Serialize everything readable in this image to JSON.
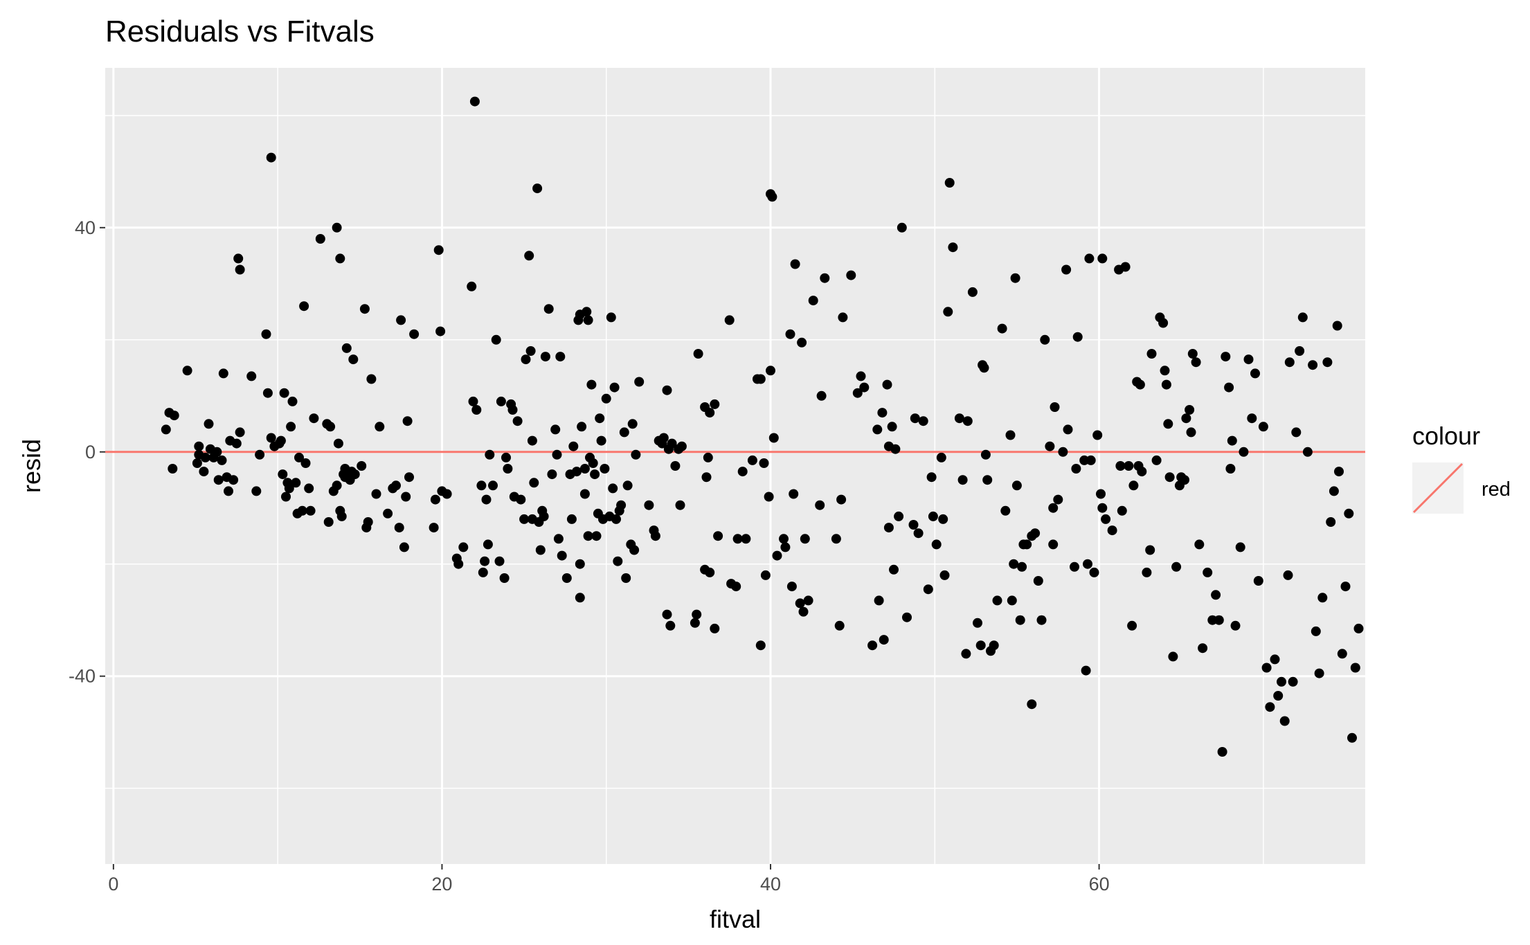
{
  "chart_data": {
    "type": "scatter",
    "title": "Residuals vs Fitvals",
    "xlabel": "fitval",
    "ylabel": "resid",
    "xlim": [
      -0.5,
      76.2
    ],
    "ylim": [
      -73.5,
      68.5
    ],
    "x_ticks": [
      0,
      20,
      40,
      60
    ],
    "y_ticks": [
      -40,
      0,
      40
    ],
    "x_tick_labels": [
      "0",
      "20",
      "40",
      "60"
    ],
    "y_tick_labels": [
      "-40",
      "0",
      "40"
    ],
    "x_minor_ticks": [
      10,
      30,
      50,
      70
    ],
    "y_minor_ticks": [
      -60,
      -20,
      20,
      60
    ],
    "grid": true,
    "point_color": "#000000",
    "reference_line": {
      "y": 0,
      "color": "#F8766D"
    },
    "legend": {
      "title": "colour",
      "label": "red",
      "placement": "right",
      "color": "#F8766D"
    },
    "points": [
      [
        3.2,
        4
      ],
      [
        3.4,
        7
      ],
      [
        3.7,
        6.5
      ],
      [
        3.6,
        -3
      ],
      [
        4.5,
        14.5
      ],
      [
        5.1,
        -2
      ],
      [
        5.2,
        1
      ],
      [
        5.2,
        -0.5
      ],
      [
        5.5,
        -3.5
      ],
      [
        5.6,
        -1
      ],
      [
        5.8,
        5
      ],
      [
        5.9,
        0.5
      ],
      [
        6.1,
        -1
      ],
      [
        6.3,
        0
      ],
      [
        6.4,
        -5
      ],
      [
        6.6,
        -1.5
      ],
      [
        6.7,
        14
      ],
      [
        6.9,
        -4.5
      ],
      [
        7.0,
        -7
      ],
      [
        7.1,
        2
      ],
      [
        7.3,
        -5
      ],
      [
        7.5,
        1.5
      ],
      [
        7.6,
        34.5
      ],
      [
        7.7,
        32.5
      ],
      [
        7.7,
        3.5
      ],
      [
        8.4,
        13.5
      ],
      [
        8.7,
        -7
      ],
      [
        8.9,
        -0.5
      ],
      [
        9.3,
        21
      ],
      [
        9.4,
        10.5
      ],
      [
        9.6,
        52.5
      ],
      [
        9.6,
        2.5
      ],
      [
        9.8,
        1
      ],
      [
        10.1,
        1.5
      ],
      [
        10.2,
        2
      ],
      [
        10.3,
        -4
      ],
      [
        10.4,
        10.5
      ],
      [
        10.5,
        -8
      ],
      [
        10.6,
        -5.5
      ],
      [
        10.7,
        -6.5
      ],
      [
        10.8,
        4.5
      ],
      [
        10.9,
        9
      ],
      [
        11.1,
        -5.5
      ],
      [
        11.2,
        -11
      ],
      [
        11.3,
        -1
      ],
      [
        11.5,
        -10.5
      ],
      [
        11.6,
        26
      ],
      [
        11.7,
        -2
      ],
      [
        11.9,
        -6.5
      ],
      [
        12.0,
        -10.5
      ],
      [
        12.2,
        6
      ],
      [
        12.6,
        38
      ],
      [
        13.0,
        5
      ],
      [
        13.1,
        -12.5
      ],
      [
        13.2,
        4.5
      ],
      [
        13.4,
        -7
      ],
      [
        13.6,
        -6
      ],
      [
        13.6,
        40
      ],
      [
        13.7,
        1.5
      ],
      [
        13.8,
        34.5
      ],
      [
        13.8,
        -10.5
      ],
      [
        13.9,
        -11.5
      ],
      [
        14.0,
        -4
      ],
      [
        14.1,
        -4.5
      ],
      [
        14.1,
        -3
      ],
      [
        14.2,
        18.5
      ],
      [
        14.4,
        -5
      ],
      [
        14.5,
        -3.5
      ],
      [
        14.6,
        16.5
      ],
      [
        14.7,
        -4
      ],
      [
        15.1,
        -2.5
      ],
      [
        15.3,
        25.5
      ],
      [
        15.4,
        -13.5
      ],
      [
        15.5,
        -12.5
      ],
      [
        15.7,
        13
      ],
      [
        16.0,
        -7.5
      ],
      [
        16.2,
        4.5
      ],
      [
        16.7,
        -11
      ],
      [
        17.0,
        -6.5
      ],
      [
        17.2,
        -6
      ],
      [
        17.4,
        -13.5
      ],
      [
        17.5,
        23.5
      ],
      [
        17.7,
        -17
      ],
      [
        17.8,
        -8
      ],
      [
        17.9,
        5.5
      ],
      [
        18.0,
        -4.5
      ],
      [
        18.3,
        21
      ],
      [
        19.5,
        -13.5
      ],
      [
        19.6,
        -8.5
      ],
      [
        19.8,
        36
      ],
      [
        19.9,
        21.5
      ],
      [
        20.0,
        -7
      ],
      [
        20.3,
        -7.5
      ],
      [
        20.9,
        -19
      ],
      [
        21.0,
        -20
      ],
      [
        21.3,
        -17
      ],
      [
        21.8,
        29.5
      ],
      [
        21.9,
        9
      ],
      [
        22.0,
        62.5
      ],
      [
        22.1,
        7.5
      ],
      [
        22.4,
        -6
      ],
      [
        22.5,
        -21.5
      ],
      [
        22.6,
        -19.5
      ],
      [
        22.7,
        -8.5
      ],
      [
        22.8,
        -16.5
      ],
      [
        22.9,
        -0.5
      ],
      [
        23.1,
        -6
      ],
      [
        23.3,
        20
      ],
      [
        23.5,
        -19.5
      ],
      [
        23.6,
        9
      ],
      [
        23.8,
        -22.5
      ],
      [
        23.9,
        -1
      ],
      [
        24.0,
        -3
      ],
      [
        24.2,
        8.5
      ],
      [
        24.3,
        7.5
      ],
      [
        24.4,
        -8
      ],
      [
        24.6,
        5.5
      ],
      [
        24.8,
        -8.5
      ],
      [
        25.0,
        -12
      ],
      [
        25.1,
        16.5
      ],
      [
        25.3,
        35
      ],
      [
        25.4,
        18
      ],
      [
        25.5,
        2
      ],
      [
        25.5,
        -12
      ],
      [
        25.6,
        -5.5
      ],
      [
        25.8,
        47
      ],
      [
        25.9,
        -12.5
      ],
      [
        26.0,
        -17.5
      ],
      [
        26.1,
        -10.5
      ],
      [
        26.2,
        -11.5
      ],
      [
        26.3,
        17
      ],
      [
        26.5,
        25.5
      ],
      [
        26.7,
        -4
      ],
      [
        26.9,
        4
      ],
      [
        27.0,
        -0.5
      ],
      [
        27.1,
        -15.5
      ],
      [
        27.2,
        17
      ],
      [
        27.3,
        -18.5
      ],
      [
        27.6,
        -22.5
      ],
      [
        27.8,
        -4
      ],
      [
        27.9,
        -12
      ],
      [
        28.0,
        1
      ],
      [
        28.2,
        -3.5
      ],
      [
        28.3,
        23.5
      ],
      [
        28.4,
        -20
      ],
      [
        28.4,
        24.5
      ],
      [
        28.4,
        -26
      ],
      [
        28.5,
        4.5
      ],
      [
        28.7,
        -3
      ],
      [
        28.7,
        -7.5
      ],
      [
        28.8,
        25
      ],
      [
        28.9,
        -15
      ],
      [
        28.9,
        23.5
      ],
      [
        29.0,
        -1
      ],
      [
        29.1,
        12
      ],
      [
        29.2,
        -2
      ],
      [
        29.3,
        -4
      ],
      [
        29.4,
        -15
      ],
      [
        29.5,
        -11
      ],
      [
        29.6,
        6
      ],
      [
        29.7,
        2
      ],
      [
        29.8,
        -12
      ],
      [
        29.9,
        -3
      ],
      [
        30.0,
        9.5
      ],
      [
        30.2,
        -11.5
      ],
      [
        30.3,
        24
      ],
      [
        30.4,
        -6.5
      ],
      [
        30.5,
        11.5
      ],
      [
        30.6,
        -12
      ],
      [
        30.7,
        -19.5
      ],
      [
        30.8,
        -10.5
      ],
      [
        30.9,
        -9.5
      ],
      [
        31.1,
        3.5
      ],
      [
        31.2,
        -22.5
      ],
      [
        31.3,
        -6
      ],
      [
        31.5,
        -16.5
      ],
      [
        31.6,
        5
      ],
      [
        31.7,
        -17.5
      ],
      [
        31.8,
        -0.5
      ],
      [
        32.0,
        12.5
      ],
      [
        32.6,
        -9.5
      ],
      [
        32.9,
        -14
      ],
      [
        33.0,
        -15
      ],
      [
        33.2,
        2
      ],
      [
        33.4,
        1.5
      ],
      [
        33.5,
        2.5
      ],
      [
        33.7,
        -29
      ],
      [
        33.7,
        11
      ],
      [
        33.8,
        0.5
      ],
      [
        33.9,
        -31
      ],
      [
        34.0,
        1.5
      ],
      [
        34.2,
        -2.5
      ],
      [
        34.4,
        0.5
      ],
      [
        34.5,
        -9.5
      ],
      [
        34.6,
        1
      ],
      [
        35.4,
        -30.5
      ],
      [
        35.5,
        -29
      ],
      [
        35.6,
        17.5
      ],
      [
        36.0,
        -21
      ],
      [
        36.0,
        8
      ],
      [
        36.1,
        -4.5
      ],
      [
        36.2,
        -1
      ],
      [
        36.3,
        7
      ],
      [
        36.3,
        -21.5
      ],
      [
        36.6,
        8.5
      ],
      [
        36.6,
        -31.5
      ],
      [
        36.8,
        -15
      ],
      [
        37.5,
        23.5
      ],
      [
        37.6,
        -23.5
      ],
      [
        37.9,
        -24
      ],
      [
        38.0,
        -15.5
      ],
      [
        38.3,
        -3.5
      ],
      [
        38.5,
        -15.5
      ],
      [
        38.9,
        -1.5
      ],
      [
        39.2,
        13
      ],
      [
        39.4,
        -34.5
      ],
      [
        39.4,
        13
      ],
      [
        39.6,
        -2
      ],
      [
        39.7,
        -22
      ],
      [
        39.9,
        -8
      ],
      [
        40.0,
        46
      ],
      [
        40.0,
        14.5
      ],
      [
        40.1,
        45.5
      ],
      [
        40.2,
        2.5
      ],
      [
        40.4,
        -18.5
      ],
      [
        40.8,
        -15.5
      ],
      [
        40.9,
        -17
      ],
      [
        41.2,
        21
      ],
      [
        41.3,
        -24
      ],
      [
        41.4,
        -7.5
      ],
      [
        41.5,
        33.5
      ],
      [
        41.8,
        -27
      ],
      [
        41.9,
        19.5
      ],
      [
        42.0,
        -28.5
      ],
      [
        42.1,
        -15.5
      ],
      [
        42.3,
        -26.5
      ],
      [
        42.6,
        27
      ],
      [
        43.0,
        -9.5
      ],
      [
        43.1,
        10
      ],
      [
        43.3,
        31
      ],
      [
        44.0,
        -15.5
      ],
      [
        44.2,
        -31
      ],
      [
        44.3,
        -8.5
      ],
      [
        44.4,
        24
      ],
      [
        44.9,
        31.5
      ],
      [
        45.3,
        10.5
      ],
      [
        45.5,
        13.5
      ],
      [
        45.7,
        11.5
      ],
      [
        46.2,
        -34.5
      ],
      [
        46.5,
        4
      ],
      [
        46.6,
        -26.5
      ],
      [
        46.8,
        7
      ],
      [
        46.9,
        -33.5
      ],
      [
        47.1,
        12
      ],
      [
        47.2,
        -13.5
      ],
      [
        47.2,
        1
      ],
      [
        47.4,
        4.5
      ],
      [
        47.5,
        -21
      ],
      [
        47.6,
        0.5
      ],
      [
        47.8,
        -11.5
      ],
      [
        48.0,
        40
      ],
      [
        48.3,
        -29.5
      ],
      [
        48.7,
        -13
      ],
      [
        48.8,
        6
      ],
      [
        49.0,
        -14.5
      ],
      [
        49.3,
        5.5
      ],
      [
        49.6,
        -24.5
      ],
      [
        49.8,
        -4.5
      ],
      [
        49.9,
        -11.5
      ],
      [
        50.1,
        -16.5
      ],
      [
        50.4,
        -1
      ],
      [
        50.5,
        -12
      ],
      [
        50.6,
        -22
      ],
      [
        50.8,
        25
      ],
      [
        50.9,
        48
      ],
      [
        51.1,
        36.5
      ],
      [
        51.5,
        6
      ],
      [
        51.7,
        -5
      ],
      [
        51.9,
        -36
      ],
      [
        52.0,
        5.5
      ],
      [
        52.3,
        28.5
      ],
      [
        52.6,
        -30.5
      ],
      [
        52.8,
        -34.5
      ],
      [
        52.9,
        15.5
      ],
      [
        53.0,
        15
      ],
      [
        53.1,
        -0.5
      ],
      [
        53.2,
        -5
      ],
      [
        53.4,
        -35.5
      ],
      [
        53.6,
        -34.5
      ],
      [
        53.8,
        -26.5
      ],
      [
        54.1,
        22
      ],
      [
        54.3,
        -10.5
      ],
      [
        54.6,
        3
      ],
      [
        54.7,
        -26.5
      ],
      [
        54.8,
        -20
      ],
      [
        54.9,
        31
      ],
      [
        55.0,
        -6
      ],
      [
        55.2,
        -30
      ],
      [
        55.3,
        -20.5
      ],
      [
        55.4,
        -16.5
      ],
      [
        55.6,
        -16.5
      ],
      [
        55.9,
        -45
      ],
      [
        55.9,
        -15
      ],
      [
        56.1,
        -14.5
      ],
      [
        56.3,
        -23
      ],
      [
        56.5,
        -30
      ],
      [
        56.7,
        20
      ],
      [
        57.0,
        1
      ],
      [
        57.2,
        -16.5
      ],
      [
        57.2,
        -10
      ],
      [
        57.3,
        8
      ],
      [
        57.5,
        -8.5
      ],
      [
        57.8,
        0
      ],
      [
        58.0,
        32.5
      ],
      [
        58.1,
        4
      ],
      [
        58.5,
        -20.5
      ],
      [
        58.6,
        -3
      ],
      [
        58.7,
        20.5
      ],
      [
        59.1,
        -1.5
      ],
      [
        59.2,
        -39
      ],
      [
        59.3,
        -20
      ],
      [
        59.4,
        34.5
      ],
      [
        59.5,
        -1.5
      ],
      [
        59.7,
        -21.5
      ],
      [
        59.9,
        3
      ],
      [
        60.1,
        -7.5
      ],
      [
        60.2,
        -10
      ],
      [
        60.2,
        34.5
      ],
      [
        60.4,
        -12
      ],
      [
        60.8,
        -14
      ],
      [
        61.2,
        32.5
      ],
      [
        61.3,
        -2.5
      ],
      [
        61.4,
        -10.5
      ],
      [
        61.6,
        33
      ],
      [
        61.8,
        -2.5
      ],
      [
        62.0,
        -31
      ],
      [
        62.1,
        -6
      ],
      [
        62.3,
        12.5
      ],
      [
        62.4,
        -2.5
      ],
      [
        62.5,
        12
      ],
      [
        62.6,
        -3.5
      ],
      [
        62.9,
        -21.5
      ],
      [
        63.1,
        -17.5
      ],
      [
        63.2,
        17.5
      ],
      [
        63.5,
        -1.5
      ],
      [
        63.7,
        24
      ],
      [
        63.9,
        23
      ],
      [
        64.0,
        14.5
      ],
      [
        64.1,
        12
      ],
      [
        64.2,
        5
      ],
      [
        64.3,
        -4.5
      ],
      [
        64.5,
        -36.5
      ],
      [
        64.7,
        -20.5
      ],
      [
        64.9,
        -6
      ],
      [
        65.0,
        -4.5
      ],
      [
        65.2,
        -5
      ],
      [
        65.3,
        6
      ],
      [
        65.5,
        7.5
      ],
      [
        65.6,
        3.5
      ],
      [
        65.7,
        17.5
      ],
      [
        65.9,
        16
      ],
      [
        66.1,
        -16.5
      ],
      [
        66.3,
        -35
      ],
      [
        66.6,
        -21.5
      ],
      [
        66.9,
        -30
      ],
      [
        67.1,
        -25.5
      ],
      [
        67.3,
        -30
      ],
      [
        67.5,
        -53.5
      ],
      [
        67.7,
        17
      ],
      [
        67.9,
        11.5
      ],
      [
        68.0,
        -3
      ],
      [
        68.1,
        2
      ],
      [
        68.3,
        -31
      ],
      [
        68.6,
        -17
      ],
      [
        68.8,
        0
      ],
      [
        69.1,
        16.5
      ],
      [
        69.3,
        6
      ],
      [
        69.5,
        14
      ],
      [
        69.7,
        -23
      ],
      [
        70.0,
        4.5
      ],
      [
        70.2,
        -38.5
      ],
      [
        70.4,
        -45.5
      ],
      [
        70.7,
        -37
      ],
      [
        70.9,
        -43.5
      ],
      [
        71.1,
        -41
      ],
      [
        71.3,
        -48
      ],
      [
        71.5,
        -22
      ],
      [
        71.6,
        16
      ],
      [
        71.8,
        -41
      ],
      [
        72.0,
        3.5
      ],
      [
        72.2,
        18
      ],
      [
        72.4,
        24
      ],
      [
        72.7,
        0
      ],
      [
        73.0,
        15.5
      ],
      [
        73.2,
        -32
      ],
      [
        73.4,
        -39.5
      ],
      [
        73.6,
        -26
      ],
      [
        73.9,
        16
      ],
      [
        74.1,
        -12.5
      ],
      [
        74.3,
        -7
      ],
      [
        74.5,
        22.5
      ],
      [
        74.6,
        -3.5
      ],
      [
        74.8,
        -36
      ],
      [
        75.0,
        -24
      ],
      [
        75.2,
        -11
      ],
      [
        75.4,
        -51
      ],
      [
        75.6,
        -38.5
      ],
      [
        75.8,
        -31.5
      ]
    ]
  }
}
